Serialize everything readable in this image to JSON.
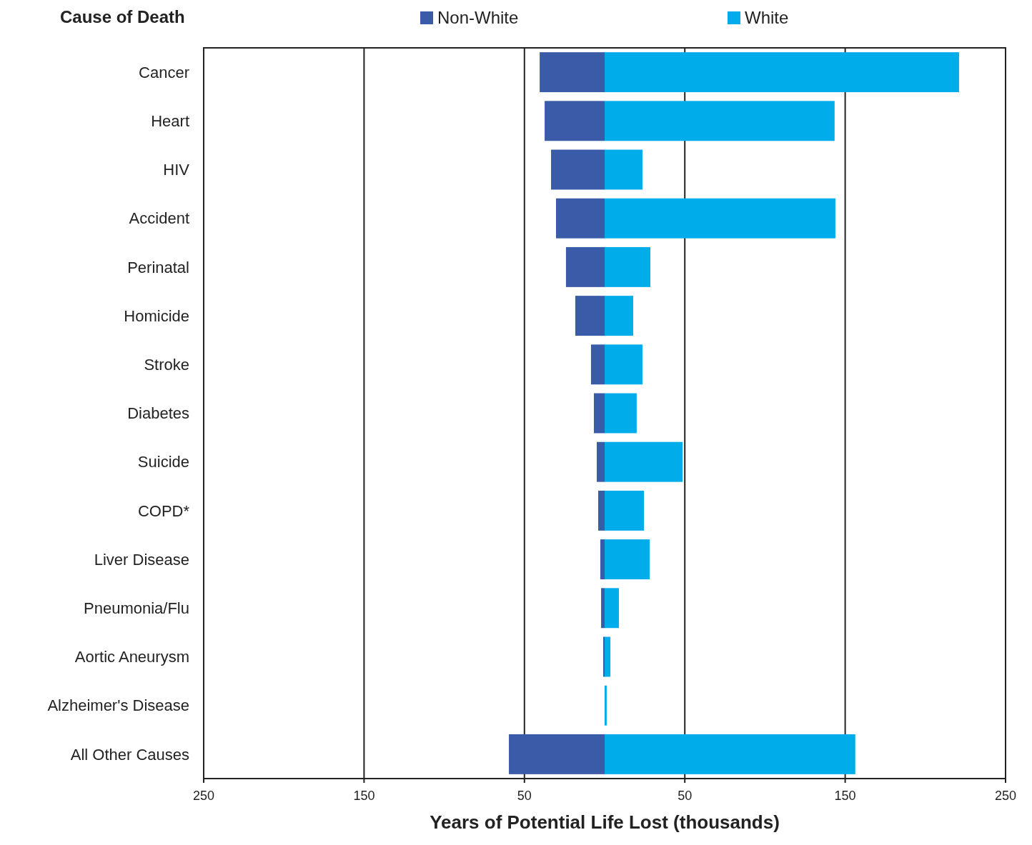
{
  "chart_data": {
    "type": "bar",
    "orientation": "horizontal",
    "stacked": true,
    "xlabel": "Years of Potential Life Lost (thousands)",
    "ylabel": "Cause of Death",
    "categories": [
      "Cancer",
      "Heart",
      "HIV",
      "Accident",
      "Perinatal",
      "Homicide",
      "Stroke",
      "Diabetes",
      "Suicide",
      "COPD*",
      "Liver Disease",
      "Pneumonia/Flu",
      "Aortic Aneurysm",
      "Alzheimer's Disease",
      "All Other Causes"
    ],
    "series": [
      {
        "name": "Non-White",
        "color": "#3a5ba8",
        "values": [
          -40.5,
          -37.4,
          -33.4,
          -30.3,
          -24.1,
          -18.3,
          -8.5,
          -6.7,
          -4.9,
          -4,
          -2.7,
          -2.2,
          -0.9,
          null,
          -59.7
        ]
      },
      {
        "name": "White",
        "color": "#00adea",
        "values": [
          221,
          143.4,
          23.6,
          143.9,
          28.5,
          17.8,
          23.6,
          20,
          48.6,
          24.5,
          28.1,
          8.9,
          3.6,
          1.3,
          156.3
        ]
      }
    ],
    "xlim": [
      -250,
      250
    ],
    "xticks": [
      {
        "value": -250,
        "label": "250"
      },
      {
        "value": -150,
        "label": "150"
      },
      {
        "value": -50,
        "label": "50"
      },
      50,
      150,
      250
    ],
    "grid": "x",
    "legend": "top"
  }
}
